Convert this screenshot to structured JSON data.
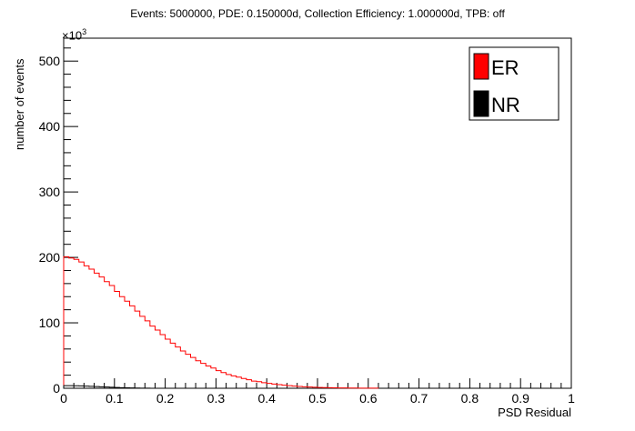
{
  "chart_data": {
    "type": "bar",
    "title": "Events: 5000000, PDE: 0.150000d, Collection Efficiency: 1.000000d, TPB: off",
    "xlabel": "PSD Residual",
    "ylabel": "number of events",
    "y_exponent_label": "×10",
    "y_exponent_power": "3",
    "xlim": [
      0,
      1
    ],
    "ylim": [
      0,
      535
    ],
    "xticks": [
      "0",
      "0.1",
      "0.2",
      "0.3",
      "0.4",
      "0.5",
      "0.6",
      "0.7",
      "0.8",
      "0.9",
      "1"
    ],
    "yticks": [
      "0",
      "100",
      "200",
      "300",
      "400",
      "500"
    ],
    "legend_position": "top-right",
    "bin_width": 0.01,
    "series": [
      {
        "name": "ER",
        "color": "#ff0000",
        "values": [
          201,
          199,
          197,
          193,
          187,
          182,
          176,
          170,
          163,
          157,
          148,
          140,
          133,
          126,
          118,
          110,
          103,
          95,
          89,
          82,
          75,
          69,
          63,
          57,
          52,
          47,
          42,
          38,
          34,
          31,
          27,
          24,
          21,
          19,
          17,
          15,
          13,
          11,
          10,
          8.5,
          7.5,
          6.5,
          5.5,
          4.7,
          4,
          3.3,
          2.8,
          2.3,
          1.9,
          1.6,
          1.3,
          1.1,
          0.9,
          0.7,
          0.6,
          0.5,
          0.4,
          0.3,
          0.25,
          0.2,
          0.15,
          0.1
        ]
      },
      {
        "name": "NR",
        "color": "#000000",
        "values": [
          4,
          4,
          3.8,
          3.6,
          3.3,
          3,
          2.6,
          2.2,
          1.9,
          1.5,
          1.2,
          0.9,
          0.7,
          0.5,
          0.35,
          0.2,
          0.1
        ]
      }
    ]
  }
}
